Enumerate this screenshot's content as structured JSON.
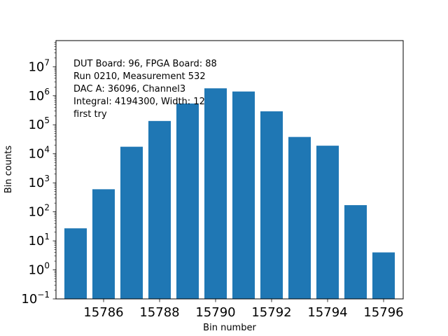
{
  "chart_data": {
    "type": "bar",
    "title": "",
    "xlabel": "Bin number",
    "ylabel": "Bin counts",
    "yscale": "log",
    "xlim": [
      15784.3,
      15796.7
    ],
    "ylim_exp": [
      -1,
      7.9
    ],
    "grid": false,
    "bar_color": "#1f77b4",
    "bar_width": 0.8,
    "x": [
      15785,
      15786,
      15787,
      15788,
      15789,
      15790,
      15791,
      15792,
      15793,
      15794,
      15795,
      15796
    ],
    "values": [
      27,
      600,
      17500,
      135000,
      540000,
      1800000,
      1400000,
      290000,
      38000,
      19000,
      170,
      4
    ],
    "xticks": [
      "15786",
      "15788",
      "15790",
      "15792",
      "15794",
      "15796"
    ],
    "xtick_values": [
      15786,
      15788,
      15790,
      15792,
      15794,
      15796
    ],
    "ytick_exponents": [
      -1,
      0,
      1,
      2,
      3,
      4,
      5,
      6,
      7
    ],
    "ytick_base": "10",
    "annotations": [
      "DUT Board: 96, FPGA Board: 88",
      "Run 0210, Measurement 532",
      "DAC A: 36096, Channel3",
      "Integral: 4194300, Width: 12",
      "first try"
    ]
  }
}
